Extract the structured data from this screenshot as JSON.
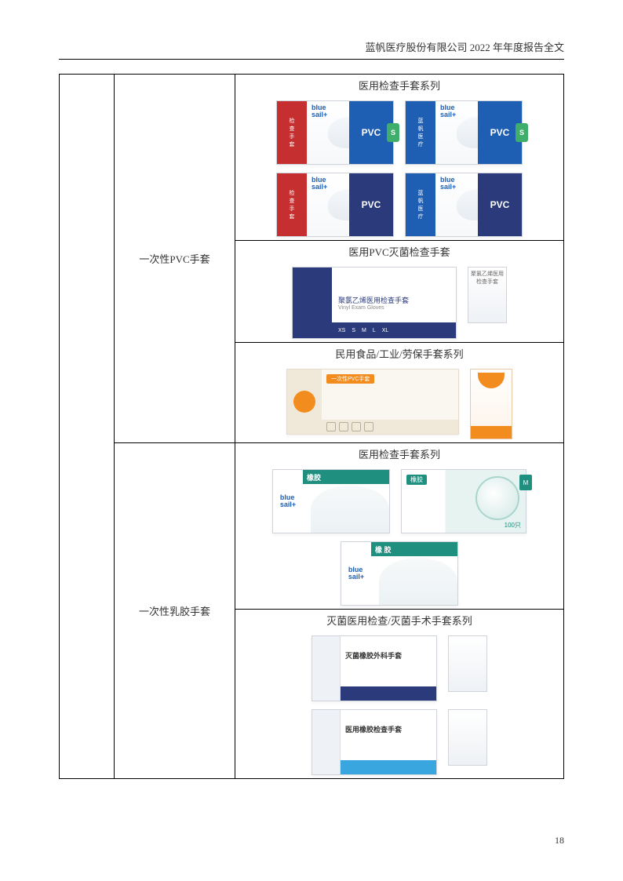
{
  "header": "蓝帆医疗股份有限公司 2022 年年度报告全文",
  "page_number": "18",
  "colors": {
    "brand_blue": "#1e5fb3",
    "dark_navy": "#2b3a7a",
    "red": "#c62f2f",
    "green_s": "#3fae6b",
    "orange": "#f28c1e",
    "latex_green": "#1f8f7f",
    "sterile_blue": "#3aa6e0"
  },
  "rows": [
    {
      "category": "一次性PVC手套",
      "cells": [
        {
          "title": "医用检查手套系列",
          "images": [
            {
              "type": "pvc",
              "side_color": "#c62f2f",
              "badge_color": "#1e5fb3",
              "brand_color": "#1e5fb3",
              "brand": "blue\nsail+",
              "side_text": "检查手套",
              "badge": "PVC",
              "size": "S",
              "size_color": "#3fae6b"
            },
            {
              "type": "pvc",
              "side_color": "#1e5fb3",
              "badge_color": "#1e5fb3",
              "brand_color": "#1e5fb3",
              "brand": "blue\nsail+",
              "side_text": "蓝帆医疗",
              "badge": "PVC",
              "size": "S",
              "size_color": "#3fae6b"
            },
            {
              "type": "pvc",
              "side_color": "#c62f2f",
              "badge_color": "#2b3a7a",
              "brand_color": "#1e5fb3",
              "brand": "blue\nsail+",
              "side_text": "检查手套",
              "badge": "PVC",
              "size": "",
              "size_color": ""
            },
            {
              "type": "pvc",
              "side_color": "#1e5fb3",
              "badge_color": "#2b3a7a",
              "brand_color": "#1e5fb3",
              "brand": "blue\nsail+",
              "side_text": "蓝帆医疗",
              "badge": "PVC",
              "size": "",
              "size_color": ""
            }
          ]
        },
        {
          "title": "医用PVC灭菌检查手套",
          "images": [
            {
              "type": "wide",
              "t1": "聚氯乙烯医用检查手套",
              "t2": "Vinyl Exam Gloves",
              "sizes": [
                "XS",
                "S",
                "M",
                "L",
                "XL"
              ]
            },
            {
              "type": "pouch",
              "text": "聚氯乙烯医用检查手套"
            }
          ]
        },
        {
          "title": "民用食品/工业/劳保手套系列",
          "images": [
            {
              "type": "consumer",
              "bar": "一次性PVC手套",
              "icons": 4
            },
            {
              "type": "tall"
            }
          ]
        }
      ]
    },
    {
      "category": "一次性乳胶手套",
      "cells": [
        {
          "title": "医用检查手套系列",
          "images": [
            {
              "type": "latex",
              "brand": "blue\nsail+",
              "brand_color": "#1e5fb3",
              "top_color": "#1f8f7f",
              "top": "橡胶"
            },
            {
              "type": "latex-nurse",
              "label": "橡胶",
              "count": "100只",
              "size": "M"
            },
            {
              "type": "latex",
              "brand": "blue\nsail+",
              "brand_color": "#1e5fb3",
              "top_color": "#1f8f7f",
              "top": "橡 胶"
            }
          ]
        },
        {
          "title": "灭菌医用检查/灭菌手术手套系列",
          "images": [
            {
              "type": "sterile",
              "strip_color": "#2b3a7a",
              "text": "灭菌橡胶外科手套"
            },
            {
              "type": "pouch",
              "text": ""
            },
            {
              "type": "sterile",
              "strip_color": "#3aa6e0",
              "text": "医用橡胶检查手套"
            },
            {
              "type": "pouch",
              "text": ""
            }
          ]
        }
      ]
    }
  ]
}
